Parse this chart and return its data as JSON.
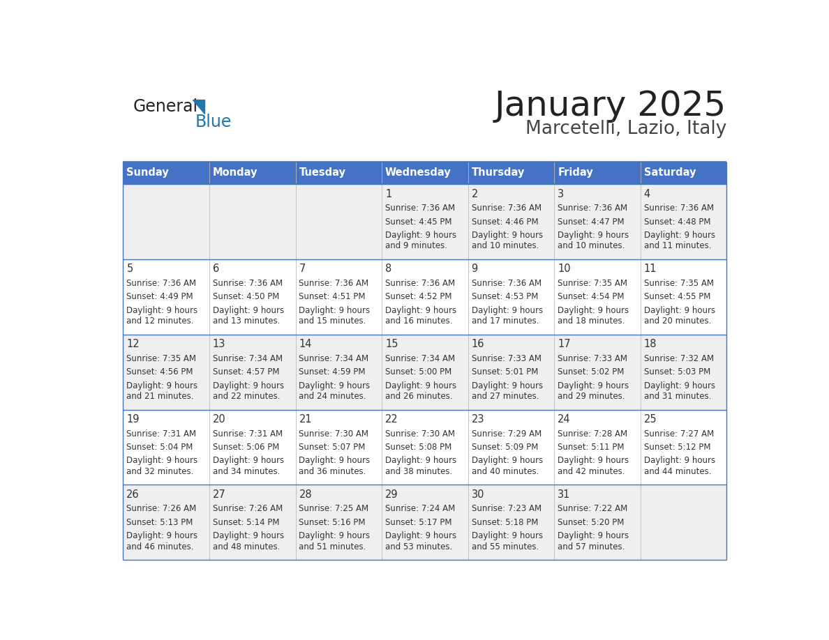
{
  "title": "January 2025",
  "subtitle": "Marcetelli, Lazio, Italy",
  "header_bg": "#4472C4",
  "header_text_color": "#FFFFFF",
  "days_of_week": [
    "Sunday",
    "Monday",
    "Tuesday",
    "Wednesday",
    "Thursday",
    "Friday",
    "Saturday"
  ],
  "row_bg_odd": "#EFEFEF",
  "row_bg_even": "#FFFFFF",
  "cell_border_color": "#4472C4",
  "cell_text_color": "#333333",
  "title_color": "#222222",
  "subtitle_color": "#444444",
  "logo_color1": "#222222",
  "logo_color2": "#2176AE",
  "logo_triangle_color": "#2176AE",
  "calendar": [
    [
      {
        "day": "",
        "sunrise": "",
        "sunset": "",
        "daylight": ""
      },
      {
        "day": "",
        "sunrise": "",
        "sunset": "",
        "daylight": ""
      },
      {
        "day": "",
        "sunrise": "",
        "sunset": "",
        "daylight": ""
      },
      {
        "day": "1",
        "sunrise": "7:36 AM",
        "sunset": "4:45 PM",
        "daylight": "9 hours and 9 minutes."
      },
      {
        "day": "2",
        "sunrise": "7:36 AM",
        "sunset": "4:46 PM",
        "daylight": "9 hours and 10 minutes."
      },
      {
        "day": "3",
        "sunrise": "7:36 AM",
        "sunset": "4:47 PM",
        "daylight": "9 hours and 10 minutes."
      },
      {
        "day": "4",
        "sunrise": "7:36 AM",
        "sunset": "4:48 PM",
        "daylight": "9 hours and 11 minutes."
      }
    ],
    [
      {
        "day": "5",
        "sunrise": "7:36 AM",
        "sunset": "4:49 PM",
        "daylight": "9 hours and 12 minutes."
      },
      {
        "day": "6",
        "sunrise": "7:36 AM",
        "sunset": "4:50 PM",
        "daylight": "9 hours and 13 minutes."
      },
      {
        "day": "7",
        "sunrise": "7:36 AM",
        "sunset": "4:51 PM",
        "daylight": "9 hours and 15 minutes."
      },
      {
        "day": "8",
        "sunrise": "7:36 AM",
        "sunset": "4:52 PM",
        "daylight": "9 hours and 16 minutes."
      },
      {
        "day": "9",
        "sunrise": "7:36 AM",
        "sunset": "4:53 PM",
        "daylight": "9 hours and 17 minutes."
      },
      {
        "day": "10",
        "sunrise": "7:35 AM",
        "sunset": "4:54 PM",
        "daylight": "9 hours and 18 minutes."
      },
      {
        "day": "11",
        "sunrise": "7:35 AM",
        "sunset": "4:55 PM",
        "daylight": "9 hours and 20 minutes."
      }
    ],
    [
      {
        "day": "12",
        "sunrise": "7:35 AM",
        "sunset": "4:56 PM",
        "daylight": "9 hours and 21 minutes."
      },
      {
        "day": "13",
        "sunrise": "7:34 AM",
        "sunset": "4:57 PM",
        "daylight": "9 hours and 22 minutes."
      },
      {
        "day": "14",
        "sunrise": "7:34 AM",
        "sunset": "4:59 PM",
        "daylight": "9 hours and 24 minutes."
      },
      {
        "day": "15",
        "sunrise": "7:34 AM",
        "sunset": "5:00 PM",
        "daylight": "9 hours and 26 minutes."
      },
      {
        "day": "16",
        "sunrise": "7:33 AM",
        "sunset": "5:01 PM",
        "daylight": "9 hours and 27 minutes."
      },
      {
        "day": "17",
        "sunrise": "7:33 AM",
        "sunset": "5:02 PM",
        "daylight": "9 hours and 29 minutes."
      },
      {
        "day": "18",
        "sunrise": "7:32 AM",
        "sunset": "5:03 PM",
        "daylight": "9 hours and 31 minutes."
      }
    ],
    [
      {
        "day": "19",
        "sunrise": "7:31 AM",
        "sunset": "5:04 PM",
        "daylight": "9 hours and 32 minutes."
      },
      {
        "day": "20",
        "sunrise": "7:31 AM",
        "sunset": "5:06 PM",
        "daylight": "9 hours and 34 minutes."
      },
      {
        "day": "21",
        "sunrise": "7:30 AM",
        "sunset": "5:07 PM",
        "daylight": "9 hours and 36 minutes."
      },
      {
        "day": "22",
        "sunrise": "7:30 AM",
        "sunset": "5:08 PM",
        "daylight": "9 hours and 38 minutes."
      },
      {
        "day": "23",
        "sunrise": "7:29 AM",
        "sunset": "5:09 PM",
        "daylight": "9 hours and 40 minutes."
      },
      {
        "day": "24",
        "sunrise": "7:28 AM",
        "sunset": "5:11 PM",
        "daylight": "9 hours and 42 minutes."
      },
      {
        "day": "25",
        "sunrise": "7:27 AM",
        "sunset": "5:12 PM",
        "daylight": "9 hours and 44 minutes."
      }
    ],
    [
      {
        "day": "26",
        "sunrise": "7:26 AM",
        "sunset": "5:13 PM",
        "daylight": "9 hours and 46 minutes."
      },
      {
        "day": "27",
        "sunrise": "7:26 AM",
        "sunset": "5:14 PM",
        "daylight": "9 hours and 48 minutes."
      },
      {
        "day": "28",
        "sunrise": "7:25 AM",
        "sunset": "5:16 PM",
        "daylight": "9 hours and 51 minutes."
      },
      {
        "day": "29",
        "sunrise": "7:24 AM",
        "sunset": "5:17 PM",
        "daylight": "9 hours and 53 minutes."
      },
      {
        "day": "30",
        "sunrise": "7:23 AM",
        "sunset": "5:18 PM",
        "daylight": "9 hours and 55 minutes."
      },
      {
        "day": "31",
        "sunrise": "7:22 AM",
        "sunset": "5:20 PM",
        "daylight": "9 hours and 57 minutes."
      },
      {
        "day": "",
        "sunrise": "",
        "sunset": "",
        "daylight": ""
      }
    ]
  ]
}
